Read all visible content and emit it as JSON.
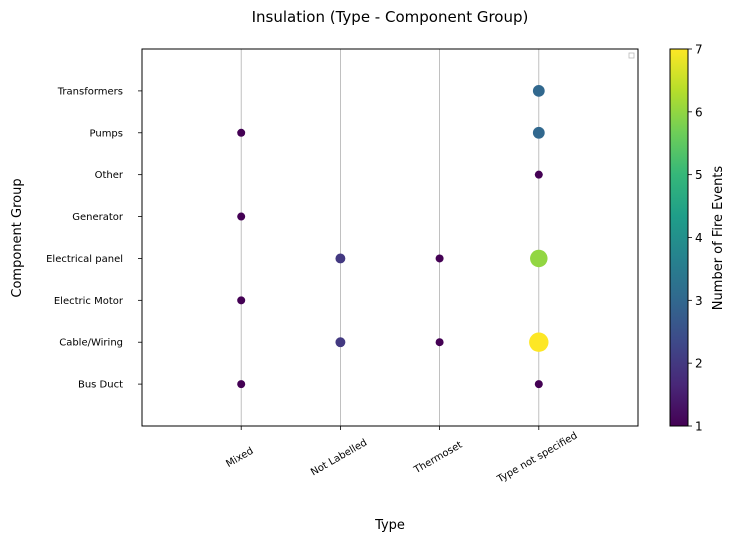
{
  "chart_data": {
    "type": "scatter",
    "title": "Insulation (Type - Component Group)",
    "xlabel": "Type",
    "ylabel": "Component Group",
    "x_categories": [
      "Mixed",
      "Not Labelled",
      "Thermoset",
      "Type not specified"
    ],
    "y_categories": [
      "Bus Duct",
      "Cable/Wiring",
      "Electric Motor",
      "Electrical panel",
      "Generator",
      "Other",
      "Pumps",
      "Transformers"
    ],
    "grid": "x-only",
    "colormap": "viridis",
    "colorbar": {
      "label": "Number of Fire Events",
      "range": [
        1,
        7
      ],
      "ticks": [
        "1",
        "2",
        "3",
        "4",
        "5",
        "6",
        "7"
      ]
    },
    "points": [
      {
        "x": "Mixed",
        "y": "Pumps",
        "value": 1
      },
      {
        "x": "Mixed",
        "y": "Generator",
        "value": 1
      },
      {
        "x": "Mixed",
        "y": "Electric Motor",
        "value": 1
      },
      {
        "x": "Mixed",
        "y": "Bus Duct",
        "value": 1
      },
      {
        "x": "Not Labelled",
        "y": "Electrical panel",
        "value": 2
      },
      {
        "x": "Not Labelled",
        "y": "Cable/Wiring",
        "value": 2
      },
      {
        "x": "Thermoset",
        "y": "Electrical panel",
        "value": 1
      },
      {
        "x": "Thermoset",
        "y": "Cable/Wiring",
        "value": 1
      },
      {
        "x": "Type not specified",
        "y": "Transformers",
        "value": 3
      },
      {
        "x": "Type not specified",
        "y": "Pumps",
        "value": 3
      },
      {
        "x": "Type not specified",
        "y": "Other",
        "value": 1
      },
      {
        "x": "Type not specified",
        "y": "Electrical panel",
        "value": 6
      },
      {
        "x": "Type not specified",
        "y": "Cable/Wiring",
        "value": 7
      },
      {
        "x": "Type not specified",
        "y": "Bus Duct",
        "value": 1
      }
    ]
  }
}
